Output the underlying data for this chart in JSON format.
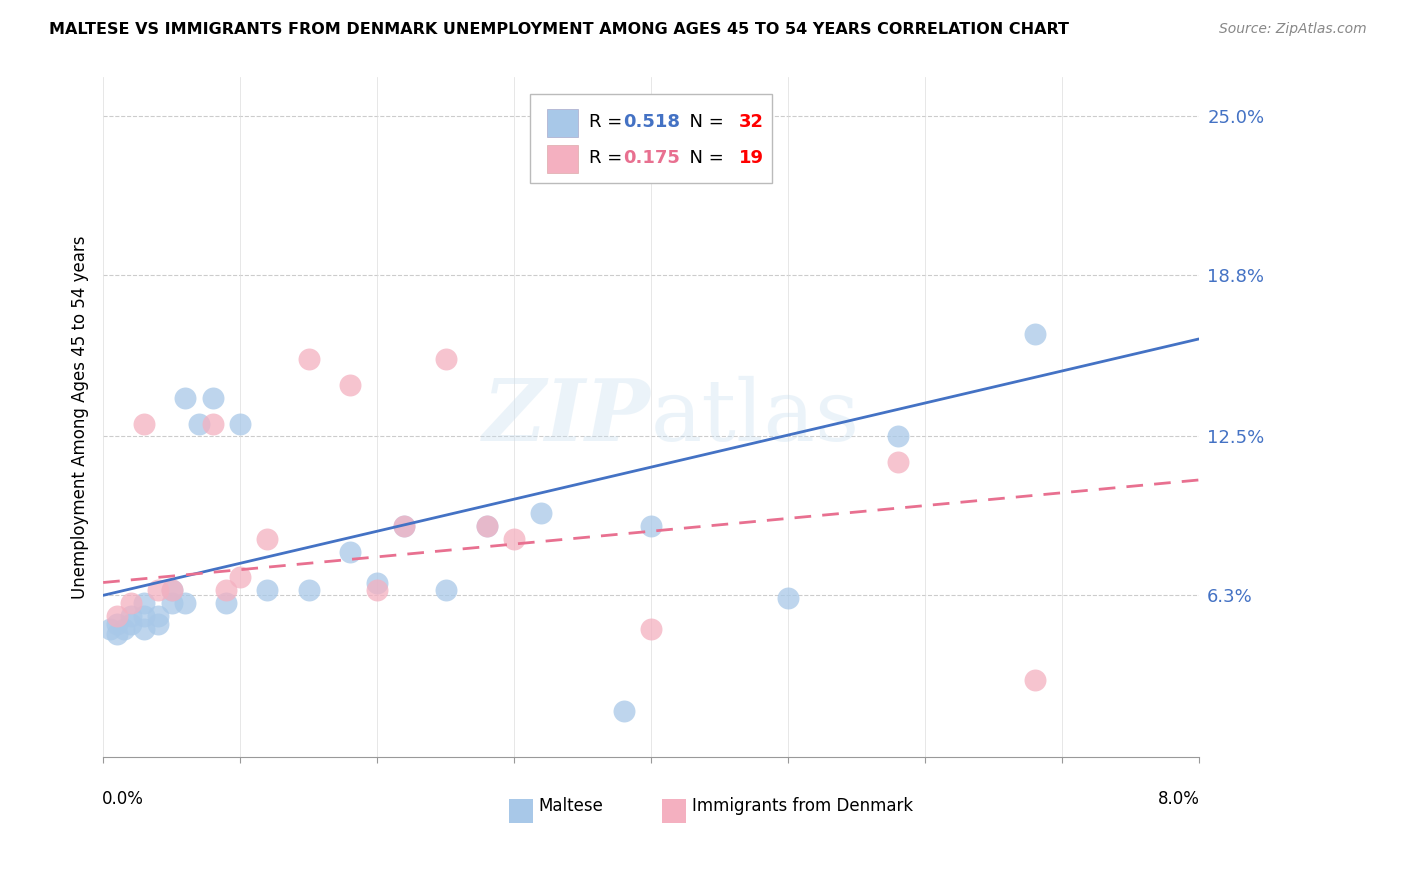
{
  "title": "MALTESE VS IMMIGRANTS FROM DENMARK UNEMPLOYMENT AMONG AGES 45 TO 54 YEARS CORRELATION CHART",
  "source": "Source: ZipAtlas.com",
  "ylabel": "Unemployment Among Ages 45 to 54 years",
  "right_yticks": [
    "25.0%",
    "18.8%",
    "12.5%",
    "6.3%"
  ],
  "right_ytick_vals": [
    0.25,
    0.188,
    0.125,
    0.063
  ],
  "xlim": [
    0.0,
    0.08
  ],
  "ylim": [
    0.0,
    0.265
  ],
  "color_blue": "#a8c8e8",
  "color_pink": "#f4b0c0",
  "line_blue": "#4472c4",
  "line_pink": "#e87090",
  "maltese_x": [
    0.0005,
    0.001,
    0.001,
    0.0015,
    0.002,
    0.002,
    0.003,
    0.003,
    0.003,
    0.004,
    0.004,
    0.005,
    0.005,
    0.006,
    0.006,
    0.007,
    0.008,
    0.009,
    0.01,
    0.012,
    0.015,
    0.018,
    0.02,
    0.022,
    0.025,
    0.028,
    0.032,
    0.038,
    0.04,
    0.05,
    0.058,
    0.068
  ],
  "maltese_y": [
    0.05,
    0.048,
    0.052,
    0.05,
    0.055,
    0.052,
    0.06,
    0.055,
    0.05,
    0.055,
    0.052,
    0.06,
    0.065,
    0.14,
    0.06,
    0.13,
    0.14,
    0.06,
    0.13,
    0.065,
    0.065,
    0.08,
    0.068,
    0.09,
    0.065,
    0.09,
    0.095,
    0.018,
    0.09,
    0.062,
    0.125,
    0.165
  ],
  "denmark_x": [
    0.001,
    0.002,
    0.003,
    0.004,
    0.005,
    0.008,
    0.009,
    0.01,
    0.012,
    0.015,
    0.018,
    0.02,
    0.022,
    0.025,
    0.028,
    0.03,
    0.04,
    0.058,
    0.068
  ],
  "denmark_y": [
    0.055,
    0.06,
    0.13,
    0.065,
    0.065,
    0.13,
    0.065,
    0.07,
    0.085,
    0.155,
    0.145,
    0.065,
    0.09,
    0.155,
    0.09,
    0.085,
    0.05,
    0.115,
    0.03
  ],
  "blue_line_x0": 0.0,
  "blue_line_y0": 0.063,
  "blue_line_x1": 0.08,
  "blue_line_y1": 0.163,
  "pink_line_x0": 0.0,
  "pink_line_y0": 0.068,
  "pink_line_x1": 0.08,
  "pink_line_y1": 0.108,
  "watermark_top": "ZIP",
  "watermark_bottom": "atlas"
}
